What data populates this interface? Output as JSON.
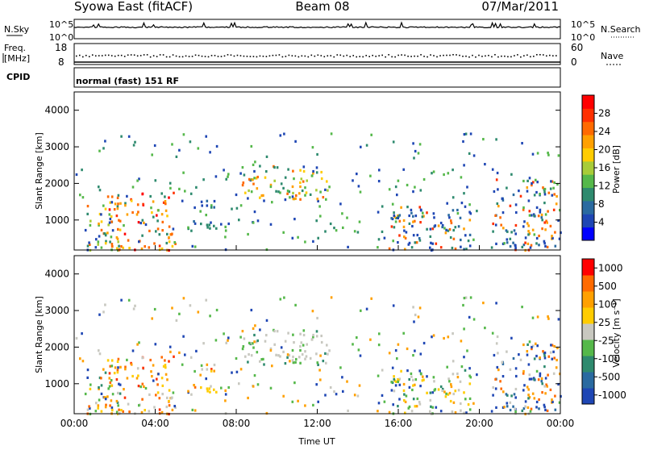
{
  "header": {
    "station": "Syowa East (fitACF)",
    "beam": "Beam 08",
    "date": "07/Mar/2011"
  },
  "strip_nsky": {
    "left_label": "N.Sky",
    "left_ticks": [
      "10^5",
      "10^0"
    ],
    "right_label": "N.Search",
    "right_ticks": [
      "10^5",
      "10^0"
    ]
  },
  "strip_freq": {
    "left_label_1": "Freq.",
    "left_label_2": "[MHz]",
    "left_ticks": [
      "18",
      "8"
    ],
    "right_label": "Nave",
    "right_ticks": [
      "60",
      "0"
    ]
  },
  "strip_cpid": {
    "label": "CPID",
    "mode_text": "normal (fast) 151 RF"
  },
  "chart_data": [
    {
      "type": "heatmap",
      "title": "",
      "ylabel": "Slant Range [km]",
      "ylim": [
        180,
        4500
      ],
      "yticks": [
        "1000",
        "2000",
        "3000",
        "4000"
      ],
      "xlim": [
        "00:00",
        "24:00"
      ],
      "colorbar": {
        "label": "Power [dB]",
        "ticks": [
          "4",
          "8",
          "12",
          "16",
          "20",
          "24",
          "28"
        ],
        "colors": [
          "#0000ff",
          "#1e46b4",
          "#2a6aa0",
          "#2e8a6e",
          "#55b84a",
          "#a8cc38",
          "#ffcc00",
          "#ffa000",
          "#ff6a00",
          "#ff3000",
          "#ff0000"
        ]
      },
      "blobs": [
        {
          "t0": 0.6,
          "t1": 2.4,
          "r0": 200,
          "r1": 1500,
          "dom": "green-orange"
        },
        {
          "t0": 1.5,
          "t1": 5.0,
          "r0": 200,
          "r1": 1900,
          "dom": "orange-red"
        },
        {
          "t0": 5.7,
          "t1": 7.2,
          "r0": 800,
          "r1": 1600,
          "dom": "green"
        },
        {
          "t0": 8.0,
          "t1": 12.6,
          "r0": 1550,
          "r1": 2500,
          "dom": "yellow-orange"
        },
        {
          "t0": 15.5,
          "t1": 19.5,
          "r0": 200,
          "r1": 1400,
          "dom": "blue-orange"
        },
        {
          "t0": 20.6,
          "t1": 24.0,
          "r0": 200,
          "r1": 2200,
          "dom": "blue-orange"
        }
      ]
    },
    {
      "type": "heatmap",
      "title": "",
      "ylabel": "Slant Range [km]",
      "ylim": [
        180,
        4500
      ],
      "yticks": [
        "1000",
        "2000",
        "3000",
        "4000"
      ],
      "xlim": [
        "00:00",
        "24:00"
      ],
      "xticks": [
        "00:00",
        "04:00",
        "08:00",
        "12:00",
        "16:00",
        "20:00",
        "00:00"
      ],
      "xlabel": "Time UT",
      "colorbar": {
        "label": "Velocity [m s⁻¹]",
        "ticks": [
          "1000",
          "500",
          "100",
          "25",
          "-25",
          "-100",
          "-500",
          "-1000"
        ],
        "colors": [
          "#1e46b4",
          "#2a6aa0",
          "#2e8a6e",
          "#55b84a",
          "#c8c8c0",
          "#ffcc00",
          "#ffa000",
          "#ff6a00",
          "#ff0000"
        ]
      },
      "blobs": [
        {
          "t0": 0.6,
          "t1": 2.4,
          "r0": 200,
          "r1": 1500,
          "dom": "orange-green"
        },
        {
          "t0": 1.5,
          "t1": 5.0,
          "r0": 200,
          "r1": 1900,
          "dom": "orange"
        },
        {
          "t0": 5.7,
          "t1": 7.2,
          "r0": 800,
          "r1": 1600,
          "dom": "orange"
        },
        {
          "t0": 8.0,
          "t1": 12.6,
          "r0": 1550,
          "r1": 2500,
          "dom": "grey"
        },
        {
          "t0": 15.5,
          "t1": 19.5,
          "r0": 200,
          "r1": 1400,
          "dom": "green-orange"
        },
        {
          "t0": 20.6,
          "t1": 24.0,
          "r0": 200,
          "r1": 2200,
          "dom": "blue"
        }
      ]
    }
  ]
}
